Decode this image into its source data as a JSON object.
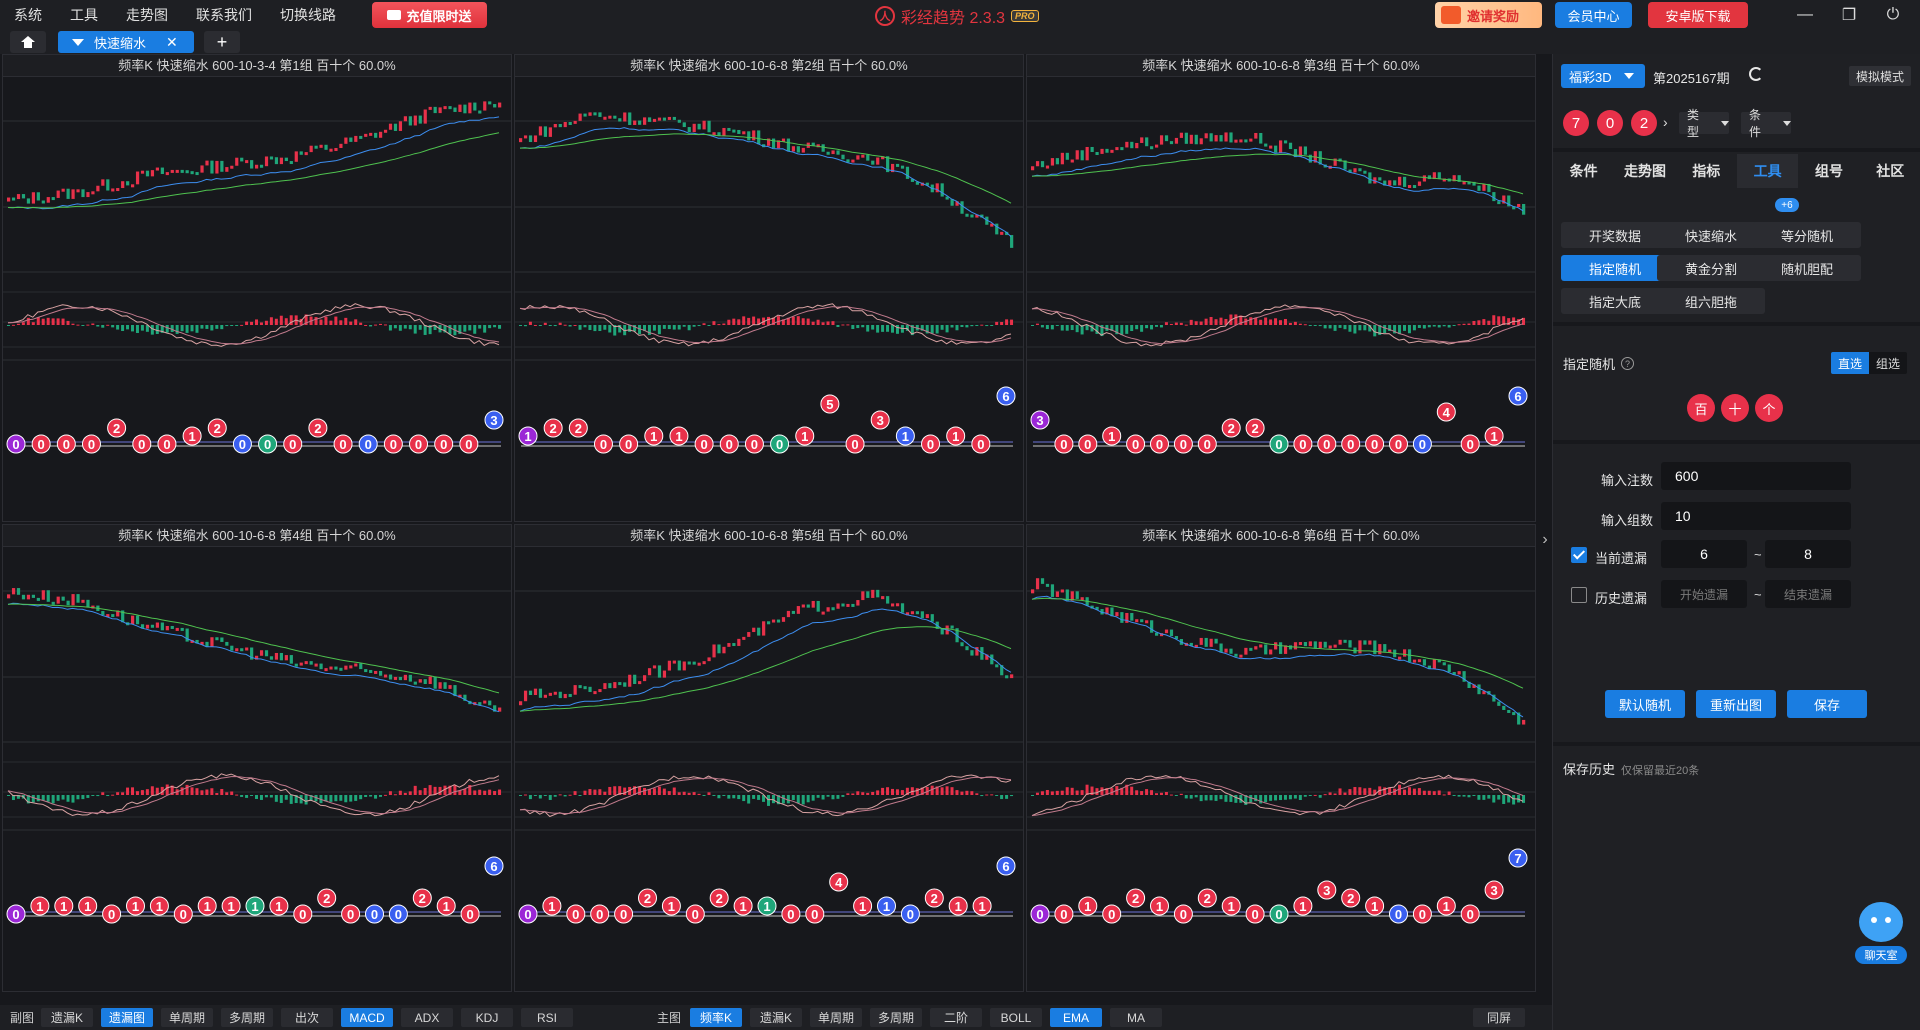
{
  "menu": {
    "items": [
      "系统",
      "工具",
      "走势图",
      "联系我们",
      "切换线路"
    ],
    "recharge": "充值限时送"
  },
  "app": {
    "title": "彩经趋势 2.3.3",
    "pro": "PRO"
  },
  "header_actions": {
    "invite": "邀请奖励",
    "member": "会员中心",
    "android": "安卓版下载"
  },
  "tabs": {
    "active": "快速缩水",
    "close": "✕",
    "add": "+"
  },
  "panels": [
    {
      "title": "频率K  快速缩水  600-10-3-4 第1组  百十个  60.0%",
      "omit_balls": [
        0,
        0,
        0,
        0,
        2,
        0,
        0,
        1,
        2,
        0,
        0,
        0,
        2,
        0,
        0,
        0,
        0,
        0,
        0,
        3
      ],
      "ball_colors": [
        "purple",
        "red",
        "red",
        "red",
        "red",
        "red",
        "red",
        "red",
        "red",
        "blue",
        "green",
        "red",
        "red",
        "red",
        "blue",
        "red",
        "red",
        "red",
        "red",
        "blue"
      ]
    },
    {
      "title": "频率K  快速缩水  600-10-6-8 第2组  百十个  60.0%",
      "omit_balls": [
        1,
        2,
        2,
        0,
        0,
        1,
        1,
        0,
        0,
        0,
        0,
        1,
        5,
        0,
        3,
        1,
        0,
        1,
        0,
        6
      ],
      "ball_colors": [
        "purple",
        "red",
        "red",
        "red",
        "red",
        "red",
        "red",
        "red",
        "red",
        "red",
        "green",
        "red",
        "red",
        "red",
        "red",
        "blue",
        "red",
        "red",
        "red",
        "blue"
      ]
    },
    {
      "title": "频率K  快速缩水  600-10-6-8 第3组  百十个  60.0%",
      "omit_balls": [
        3,
        0,
        0,
        1,
        0,
        0,
        0,
        0,
        2,
        2,
        0,
        0,
        0,
        0,
        0,
        0,
        0,
        4,
        0,
        1,
        6
      ],
      "ball_colors": [
        "purple",
        "red",
        "red",
        "red",
        "red",
        "red",
        "red",
        "red",
        "red",
        "red",
        "green",
        "red",
        "red",
        "red",
        "red",
        "red",
        "blue",
        "red",
        "red",
        "red",
        "blue"
      ]
    },
    {
      "title": "频率K  快速缩水  600-10-6-8 第4组  百十个  60.0%",
      "omit_balls": [
        0,
        1,
        1,
        1,
        0,
        1,
        1,
        0,
        1,
        1,
        1,
        1,
        0,
        2,
        0,
        0,
        0,
        2,
        1,
        0,
        6
      ],
      "ball_colors": [
        "purple",
        "red",
        "red",
        "red",
        "red",
        "red",
        "red",
        "red",
        "red",
        "red",
        "green",
        "red",
        "red",
        "red",
        "red",
        "blue",
        "blue",
        "red",
        "red",
        "red",
        "blue"
      ]
    },
    {
      "title": "频率K  快速缩水  600-10-6-8 第5组  百十个  60.0%",
      "omit_balls": [
        0,
        1,
        0,
        0,
        0,
        2,
        1,
        0,
        2,
        1,
        1,
        0,
        0,
        4,
        1,
        1,
        0,
        2,
        1,
        1,
        6
      ],
      "ball_colors": [
        "purple",
        "red",
        "red",
        "red",
        "red",
        "red",
        "red",
        "red",
        "red",
        "red",
        "green",
        "red",
        "red",
        "red",
        "red",
        "blue",
        "blue",
        "red",
        "red",
        "red",
        "blue"
      ]
    },
    {
      "title": "频率K  快速缩水  600-10-6-8 第6组  百十个  60.0%",
      "omit_balls": [
        0,
        0,
        1,
        0,
        2,
        1,
        0,
        2,
        1,
        0,
        0,
        1,
        3,
        2,
        1,
        0,
        0,
        1,
        0,
        3,
        7
      ],
      "ball_colors": [
        "purple",
        "red",
        "red",
        "red",
        "red",
        "red",
        "red",
        "red",
        "red",
        "red",
        "green",
        "red",
        "red",
        "red",
        "red",
        "blue",
        "red",
        "red",
        "red",
        "red",
        "blue"
      ]
    }
  ],
  "bottom": {
    "sub_label": "副图",
    "sub_buttons": [
      "遗漏K",
      "遗漏图",
      "单周期",
      "多周期",
      "出次",
      "MACD",
      "ADX",
      "KDJ",
      "RSI"
    ],
    "sub_active": [
      "遗漏图",
      "MACD"
    ],
    "main_label": "主图",
    "main_buttons": [
      "频率K",
      "遗漏K",
      "单周期",
      "多周期",
      "二阶",
      "BOLL",
      "EMA",
      "MA"
    ],
    "main_active": [
      "频率K",
      "EMA"
    ],
    "sync": "同屏"
  },
  "right": {
    "lottery": "福彩3D",
    "period": "第2025167期",
    "sim_mode": "模拟模式",
    "balls": [
      "7",
      "0",
      "2"
    ],
    "next": "›",
    "type_select": "类型",
    "cond_select": "条件",
    "tabs": [
      "条件",
      "走势图",
      "指标",
      "工具",
      "组号",
      "社区"
    ],
    "active_tab": "工具",
    "tools": [
      "开奖数据",
      "快速缩水",
      "等分随机",
      "指定随机",
      "黄金分割",
      "随机胆配",
      "指定大底",
      "组六胆拖"
    ],
    "active_tool": "指定随机",
    "badge": "+6",
    "section": "指定随机",
    "help": "?",
    "mode_direct": "直选",
    "mode_group": "组选",
    "digits": [
      "百",
      "十",
      "个"
    ],
    "bet_label": "输入注数",
    "bet_value": "600",
    "group_label": "输入组数",
    "group_value": "10",
    "current_omit_label": "当前遗漏",
    "current_omit_from": "6",
    "current_omit_to": "8",
    "history_omit_label": "历史遗漏",
    "history_from_placeholder": "开始遗漏",
    "history_to_placeholder": "结束遗漏",
    "tilde": "~",
    "btn_default": "默认随机",
    "btn_redraw": "重新出图",
    "btn_save": "保存",
    "history_title": "保存历史",
    "history_sub": "仅保留最近20条",
    "chat": "聊天室"
  },
  "colors": {
    "accent": "#1a7de1",
    "up": "#e8314a",
    "down": "#1fa67a",
    "ema_fast": "#3d8ef0",
    "ema_slow": "#4fc24f"
  }
}
